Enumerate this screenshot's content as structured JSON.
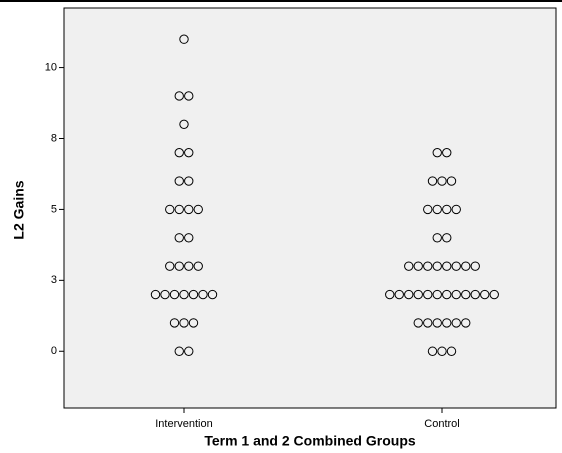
{
  "chart_data": {
    "type": "dotplot",
    "xlabel": "Term 1 and 2 Combined Groups",
    "ylabel": "L2 Gains",
    "categories": [
      "Intervention",
      "Control"
    ],
    "values": [
      [
        0,
        0,
        1,
        1,
        1,
        2,
        2,
        2,
        2,
        2,
        2,
        2,
        3,
        3,
        3,
        3,
        4,
        4,
        5,
        5,
        5,
        5,
        6,
        6,
        7,
        7,
        8,
        9,
        9,
        11
      ],
      [
        0,
        0,
        0,
        1,
        1,
        1,
        1,
        1,
        1,
        2,
        2,
        2,
        2,
        2,
        2,
        2,
        2,
        2,
        2,
        2,
        2,
        3,
        3,
        3,
        3,
        3,
        3,
        3,
        3,
        4,
        4,
        5,
        5,
        5,
        5,
        6,
        6,
        6,
        7,
        7
      ]
    ],
    "ylim": [
      -2,
      12.1
    ],
    "yticks": [
      0,
      {
        "value": 2.5,
        "label": "3"
      },
      5,
      {
        "value": 7.5,
        "label": "8"
      },
      10
    ],
    "background": "#f0f0f0"
  }
}
